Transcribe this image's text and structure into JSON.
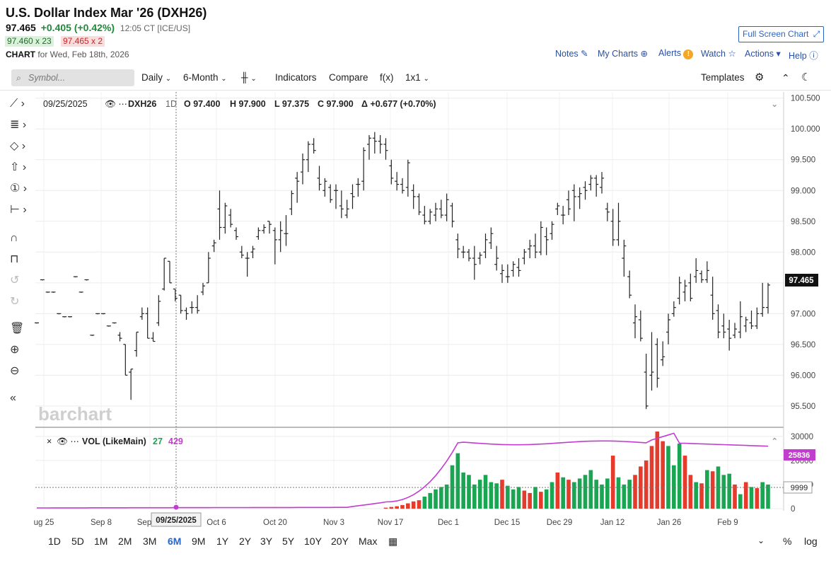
{
  "header": {
    "title": "U.S. Dollar Index Mar '26 (DXH26)",
    "last": "97.465",
    "change": "+0.405 (+0.42%)",
    "time": "12:05 CT [ICE/US]",
    "bid": "97.460 x 23",
    "ask": "97.465 x 2",
    "chart_label": "CHART",
    "chart_date": "for Wed, Feb 18th, 2026",
    "full_screen": "Full Screen Chart",
    "links": [
      "Notes",
      "My Charts",
      "Alerts",
      "Watch",
      "Actions",
      "Help"
    ]
  },
  "toolbar": {
    "symbol_placeholder": "Symbol...",
    "interval": "Daily",
    "range": "6-Month",
    "indicators": "Indicators",
    "compare": "Compare",
    "fx": "f(x)",
    "layout": "1x1",
    "templates": "Templates"
  },
  "bottom": {
    "ranges": [
      "1D",
      "5D",
      "1M",
      "2M",
      "3M",
      "6M",
      "9M",
      "1Y",
      "2Y",
      "3Y",
      "5Y",
      "10Y",
      "20Y",
      "Max"
    ],
    "active": "6M",
    "pct": "%",
    "log": "log"
  },
  "colors": {
    "up_volume": "#1aa552",
    "down_volume": "#e53b2c",
    "volume_avg": "#c33cd0",
    "accent": "#2b65c2",
    "price_tag": "#111111"
  },
  "chart_data": {
    "type": "bar",
    "watermark": "barchart",
    "info": {
      "date": "09/25/2025",
      "symbol": "DXH26",
      "interval": "1D",
      "open": "O 97.400",
      "high": "H 97.900",
      "low": "L 97.375",
      "close": "C 97.900",
      "delta": "Δ +0.677 (+0.70%)"
    },
    "price_axis": {
      "ylim": [
        95.2,
        100.6
      ],
      "ticks": [
        "100.500",
        "100.000",
        "99.500",
        "99.000",
        "98.500",
        "98.000",
        "97.500",
        "97.000",
        "96.500",
        "96.000",
        "95.500"
      ],
      "last_label": "97.465"
    },
    "x_labels": [
      "ug 25",
      "Sep 8",
      "Sep 22",
      "Oct 6",
      "Oct 20",
      "Nov 3",
      "Nov 17",
      "Dec 1",
      "Dec 15",
      "Dec 29",
      "Jan 12",
      "Jan 26",
      "Feb 9"
    ],
    "crosshair_date": "09/25/2025",
    "ohlc": [
      [
        96.85,
        96.85,
        96.85,
        96.85
      ],
      [
        97.55,
        97.55,
        97.55,
        97.55
      ],
      [
        97.35,
        97.35,
        97.35,
        97.35
      ],
      [
        97.35,
        97.35,
        97.35,
        97.35
      ],
      [
        97.0,
        97.0,
        97.0,
        97.0
      ],
      [
        96.95,
        96.95,
        96.95,
        96.95
      ],
      [
        96.95,
        96.95,
        96.95,
        96.95
      ],
      [
        97.6,
        97.6,
        97.6,
        97.6
      ],
      [
        97.35,
        97.35,
        97.35,
        97.35
      ],
      [
        97.55,
        97.55,
        97.55,
        97.55
      ],
      [
        96.65,
        96.65,
        96.65,
        96.65
      ],
      [
        97.0,
        97.0,
        97.0,
        97.0
      ],
      [
        97.0,
        97.0,
        97.0,
        97.0
      ],
      [
        96.8,
        96.8,
        96.8,
        96.8
      ],
      [
        96.85,
        96.85,
        96.85,
        96.85
      ],
      [
        96.65,
        96.7,
        96.55,
        96.6
      ],
      [
        96.5,
        96.5,
        96.0,
        96.0
      ],
      [
        96.05,
        96.1,
        95.6,
        96.1
      ],
      [
        96.4,
        96.7,
        96.3,
        96.7
      ],
      [
        96.95,
        97.1,
        96.9,
        97.0
      ],
      [
        97.0,
        97.1,
        96.6,
        96.6
      ],
      [
        96.6,
        96.7,
        96.55,
        96.55
      ],
      [
        96.85,
        97.3,
        96.8,
        97.2
      ],
      [
        97.4,
        97.9,
        97.375,
        97.9
      ],
      [
        97.85,
        97.85,
        97.5,
        97.5
      ],
      [
        97.4,
        97.4,
        97.2,
        97.25
      ],
      [
        97.3,
        97.3,
        97.0,
        97.05
      ],
      [
        97.05,
        97.1,
        96.9,
        97.0
      ],
      [
        97.1,
        97.2,
        97.0,
        97.1
      ],
      [
        97.1,
        97.3,
        97.0,
        97.05
      ],
      [
        97.35,
        97.5,
        97.3,
        97.45
      ],
      [
        97.5,
        98.0,
        97.5,
        97.9
      ],
      [
        98.1,
        98.2,
        98.0,
        98.15
      ],
      [
        98.7,
        99.0,
        98.2,
        98.4
      ],
      [
        98.4,
        98.8,
        98.3,
        98.75
      ],
      [
        98.6,
        98.7,
        98.4,
        98.45
      ],
      [
        98.35,
        98.4,
        98.2,
        98.25
      ],
      [
        98.0,
        98.1,
        97.9,
        97.95
      ],
      [
        97.9,
        98.0,
        97.6,
        97.9
      ],
      [
        98.0,
        98.1,
        97.9,
        98.05
      ],
      [
        98.25,
        98.4,
        98.2,
        98.35
      ],
      [
        98.35,
        98.45,
        98.3,
        98.4
      ],
      [
        98.5,
        98.5,
        98.3,
        98.45
      ],
      [
        98.35,
        98.4,
        97.8,
        98.2
      ],
      [
        98.2,
        98.5,
        98.0,
        98.35
      ],
      [
        98.3,
        98.6,
        98.1,
        98.3
      ],
      [
        98.7,
        99.0,
        98.6,
        98.95
      ],
      [
        99.2,
        99.3,
        98.8,
        99.15
      ],
      [
        99.3,
        99.6,
        99.1,
        99.5
      ],
      [
        99.5,
        99.8,
        99.3,
        99.75
      ],
      [
        99.75,
        99.85,
        99.6,
        99.65
      ],
      [
        99.2,
        99.4,
        99.0,
        99.1
      ],
      [
        99.0,
        99.2,
        98.9,
        99.15
      ],
      [
        99.05,
        99.1,
        98.8,
        98.85
      ],
      [
        99.0,
        99.1,
        98.7,
        99.0
      ],
      [
        98.75,
        99.0,
        98.55,
        98.7
      ],
      [
        98.6,
        98.85,
        98.55,
        98.7
      ],
      [
        98.95,
        99.1,
        98.7,
        98.9
      ],
      [
        99.1,
        99.2,
        98.9,
        99.1
      ],
      [
        99.15,
        99.7,
        99.0,
        99.65
      ],
      [
        99.75,
        99.9,
        99.5,
        99.85
      ],
      [
        99.85,
        99.95,
        99.6,
        99.8
      ],
      [
        99.8,
        99.9,
        99.6,
        99.75
      ],
      [
        99.75,
        99.85,
        99.5,
        99.65
      ],
      [
        99.4,
        99.5,
        99.1,
        99.2
      ],
      [
        99.15,
        99.3,
        99.0,
        99.1
      ],
      [
        99.1,
        99.2,
        98.95,
        99.0
      ],
      [
        99.05,
        99.5,
        98.9,
        99.45
      ],
      [
        99.0,
        99.1,
        98.7,
        98.9
      ],
      [
        98.9,
        98.95,
        98.6,
        98.65
      ],
      [
        98.6,
        98.75,
        98.45,
        98.5
      ],
      [
        98.5,
        98.7,
        98.45,
        98.65
      ],
      [
        98.6,
        98.8,
        98.5,
        98.7
      ],
      [
        98.7,
        98.85,
        98.55,
        98.6
      ],
      [
        98.6,
        98.95,
        98.5,
        98.85
      ],
      [
        98.75,
        98.8,
        98.4,
        98.5
      ],
      [
        98.2,
        98.3,
        97.9,
        98.05
      ],
      [
        98.0,
        98.1,
        97.9,
        98.0
      ],
      [
        98.0,
        98.05,
        97.85,
        97.9
      ],
      [
        97.9,
        98.1,
        97.55,
        97.8
      ],
      [
        97.9,
        98.0,
        97.8,
        97.95
      ],
      [
        98.0,
        98.3,
        97.9,
        98.2
      ],
      [
        98.15,
        98.4,
        98.05,
        98.3
      ],
      [
        97.8,
        98.1,
        97.7,
        97.9
      ],
      [
        97.65,
        97.8,
        97.5,
        97.7
      ],
      [
        97.6,
        97.8,
        97.5,
        97.6
      ],
      [
        97.7,
        97.85,
        97.6,
        97.8
      ],
      [
        97.75,
        97.9,
        97.6,
        97.7
      ],
      [
        97.9,
        98.05,
        97.8,
        98.0
      ],
      [
        98.05,
        98.2,
        97.9,
        98.1
      ],
      [
        98.1,
        98.3,
        97.9,
        98.0
      ],
      [
        98.0,
        98.5,
        97.95,
        98.4
      ],
      [
        98.25,
        98.4,
        97.95,
        98.2
      ],
      [
        98.3,
        98.5,
        98.2,
        98.45
      ],
      [
        98.7,
        98.8,
        98.6,
        98.75
      ],
      [
        98.6,
        98.75,
        98.45,
        98.6
      ],
      [
        98.85,
        99.0,
        98.6,
        98.7
      ],
      [
        99.0,
        99.1,
        98.5,
        98.9
      ],
      [
        98.9,
        99.05,
        98.7,
        98.95
      ],
      [
        99.05,
        99.15,
        98.85,
        99.0
      ],
      [
        99.1,
        99.25,
        99.0,
        99.2
      ],
      [
        99.2,
        99.25,
        98.9,
        99.1
      ],
      [
        99.05,
        99.3,
        98.95,
        99.2
      ],
      [
        98.7,
        98.8,
        98.5,
        98.65
      ],
      [
        98.5,
        98.7,
        98.1,
        98.2
      ],
      [
        98.2,
        98.8,
        98.1,
        98.5
      ],
      [
        97.9,
        98.2,
        97.6,
        98.1
      ],
      [
        97.6,
        97.7,
        97.25,
        97.3
      ],
      [
        96.85,
        97.15,
        96.6,
        96.95
      ],
      [
        96.9,
        97.05,
        96.55,
        96.6
      ],
      [
        96.05,
        96.35,
        95.45,
        95.5
      ],
      [
        96.0,
        96.7,
        95.75,
        96.05
      ],
      [
        96.5,
        96.6,
        95.8,
        95.95
      ],
      [
        96.25,
        96.55,
        96.15,
        96.3
      ],
      [
        96.7,
        97.0,
        96.5,
        96.9
      ],
      [
        97.0,
        97.2,
        96.95,
        97.1
      ],
      [
        97.25,
        97.6,
        97.15,
        97.5
      ],
      [
        97.35,
        97.55,
        97.2,
        97.45
      ],
      [
        97.5,
        97.65,
        97.2,
        97.25
      ],
      [
        97.6,
        97.9,
        97.5,
        97.7
      ],
      [
        97.65,
        97.7,
        97.5,
        97.55
      ],
      [
        97.55,
        97.85,
        97.5,
        97.7
      ],
      [
        97.3,
        97.6,
        96.9,
        97.0
      ],
      [
        97.05,
        97.15,
        96.6,
        96.7
      ],
      [
        96.8,
        97.0,
        96.6,
        96.7
      ],
      [
        96.75,
        96.9,
        96.4,
        96.6
      ],
      [
        96.65,
        96.85,
        96.6,
        96.75
      ],
      [
        96.7,
        97.2,
        96.6,
        96.95
      ],
      [
        96.8,
        96.95,
        96.7,
        96.9
      ],
      [
        96.85,
        97.05,
        96.75,
        96.8
      ],
      [
        96.8,
        97.1,
        96.75,
        97.0
      ],
      [
        97.0,
        97.5,
        96.95,
        97.1
      ],
      [
        97.1,
        97.5,
        97.0,
        97.465
      ]
    ],
    "volume": {
      "name": "VOL (LikeMain)",
      "current": "27",
      "average_label": "429",
      "ylim": [
        0,
        32000
      ],
      "ticks": [
        "30000",
        "20000",
        "10000",
        "0"
      ],
      "last_avg_label": "25836",
      "crosshair_label": "9999",
      "bars": [
        [
          400,
          "down"
        ],
        [
          700,
          "down"
        ],
        [
          1000,
          "down"
        ],
        [
          1500,
          "down"
        ],
        [
          2200,
          "down"
        ],
        [
          3000,
          "down"
        ],
        [
          3500,
          "down"
        ],
        [
          5000,
          "up"
        ],
        [
          6500,
          "up"
        ],
        [
          8000,
          "up"
        ],
        [
          9000,
          "up"
        ],
        [
          10000,
          "up"
        ],
        [
          18000,
          "up"
        ],
        [
          23000,
          "up"
        ],
        [
          15000,
          "up"
        ],
        [
          14000,
          "up"
        ],
        [
          10000,
          "up"
        ],
        [
          12000,
          "up"
        ],
        [
          14000,
          "up"
        ],
        [
          11000,
          "up"
        ],
        [
          10500,
          "up"
        ],
        [
          12000,
          "down"
        ],
        [
          9500,
          "up"
        ],
        [
          8000,
          "up"
        ],
        [
          9000,
          "up"
        ],
        [
          7500,
          "down"
        ],
        [
          6500,
          "down"
        ],
        [
          9000,
          "up"
        ],
        [
          7000,
          "down"
        ],
        [
          8000,
          "up"
        ],
        [
          11000,
          "up"
        ],
        [
          15000,
          "down"
        ],
        [
          13000,
          "up"
        ],
        [
          12000,
          "down"
        ],
        [
          11000,
          "up"
        ],
        [
          12500,
          "up"
        ],
        [
          14000,
          "up"
        ],
        [
          16000,
          "up"
        ],
        [
          12000,
          "up"
        ],
        [
          10000,
          "up"
        ],
        [
          12500,
          "up"
        ],
        [
          22000,
          "down"
        ],
        [
          13000,
          "up"
        ],
        [
          10000,
          "up"
        ],
        [
          12000,
          "up"
        ],
        [
          14000,
          "down"
        ],
        [
          17500,
          "down"
        ],
        [
          20000,
          "down"
        ],
        [
          26000,
          "down"
        ],
        [
          32000,
          "down"
        ],
        [
          28000,
          "down"
        ],
        [
          26000,
          "up"
        ],
        [
          18000,
          "up"
        ],
        [
          27000,
          "up"
        ],
        [
          22000,
          "down"
        ],
        [
          14000,
          "down"
        ],
        [
          11000,
          "up"
        ],
        [
          10500,
          "down"
        ],
        [
          16000,
          "up"
        ],
        [
          15500,
          "down"
        ],
        [
          17500,
          "up"
        ],
        [
          14000,
          "up"
        ],
        [
          14500,
          "up"
        ],
        [
          10000,
          "down"
        ],
        [
          6000,
          "up"
        ],
        [
          11000,
          "down"
        ],
        [
          9000,
          "up"
        ],
        [
          8500,
          "down"
        ],
        [
          11000,
          "up"
        ],
        [
          10000,
          "up"
        ]
      ],
      "avg_line": [
        [
          0,
          0
        ],
        [
          0.86,
          0
        ],
        [
          1.0,
          0
        ],
        [
          1.14,
          0
        ],
        [
          1.29,
          0
        ],
        [
          1.43,
          0
        ],
        [
          1.57,
          0
        ]
      ]
    }
  }
}
